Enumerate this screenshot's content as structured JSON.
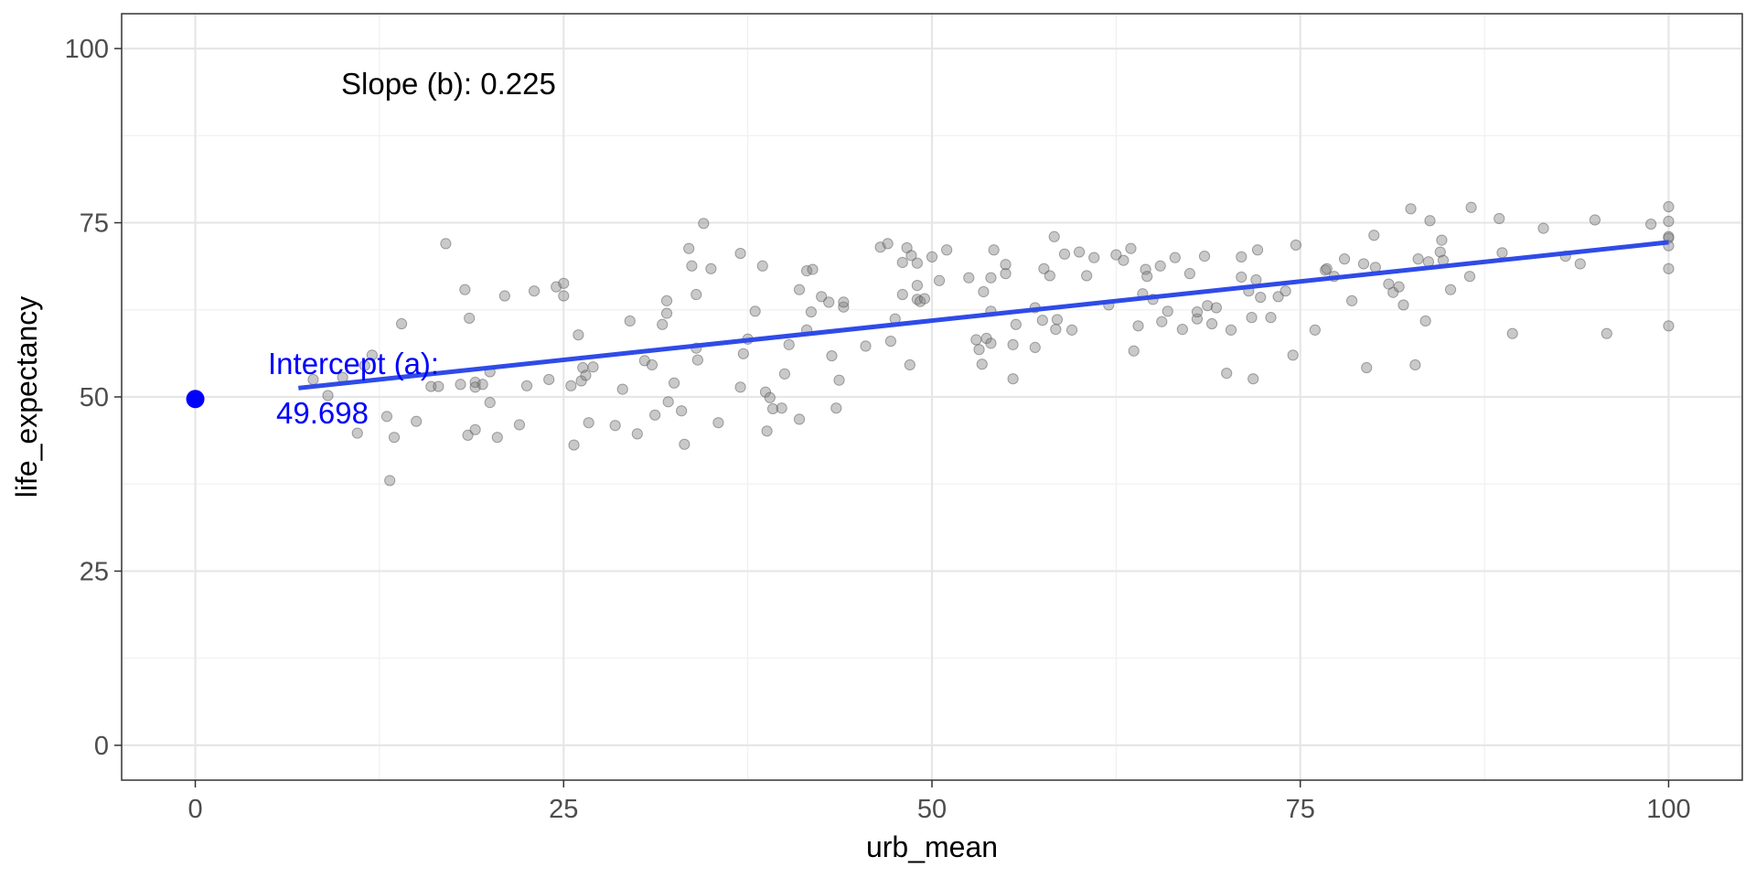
{
  "chart_data": {
    "type": "scatter",
    "xlabel": "urb_mean",
    "ylabel": "life_expectancy",
    "xlim": [
      -5,
      105
    ],
    "ylim": [
      -5,
      105
    ],
    "x_ticks": [
      0,
      25,
      50,
      75,
      100
    ],
    "y_ticks": [
      0,
      25,
      50,
      75,
      100
    ],
    "grid": true,
    "colors": {
      "points": "#7f7f7f",
      "fit_line": "#2f4be8",
      "annotation": "#0000ff",
      "text": "#000000"
    },
    "regression": {
      "slope": 0.225,
      "intercept": 49.698,
      "x_range": [
        7,
        100
      ]
    },
    "intercept_point": {
      "x": 0,
      "y": 49.698
    },
    "annotations": {
      "slope": "Slope (b): 0.225",
      "intercept_line1": "Intercept (a):",
      "intercept_line2": "49.698"
    },
    "points": [
      [
        8,
        52.5
      ],
      [
        9,
        50.2
      ],
      [
        10,
        52.8
      ],
      [
        11,
        44.8
      ],
      [
        11.5,
        54.5
      ],
      [
        12,
        56
      ],
      [
        13,
        47.2
      ],
      [
        13.2,
        38
      ],
      [
        13.5,
        44.2
      ],
      [
        14,
        60.5
      ],
      [
        15,
        46.5
      ],
      [
        16,
        51.5
      ],
      [
        16.5,
        51.5
      ],
      [
        17,
        72
      ],
      [
        18,
        51.8
      ],
      [
        18.3,
        65.4
      ],
      [
        18.5,
        44.5
      ],
      [
        18.6,
        61.3
      ],
      [
        19,
        45.3
      ],
      [
        19,
        52.1
      ],
      [
        19,
        51.4
      ],
      [
        19.5,
        51.8
      ],
      [
        20,
        49.2
      ],
      [
        20,
        53.6
      ],
      [
        20.5,
        44.2
      ],
      [
        21,
        64.5
      ],
      [
        22,
        46
      ],
      [
        22.5,
        51.6
      ],
      [
        23,
        65.2
      ],
      [
        24,
        52.5
      ],
      [
        24.5,
        65.8
      ],
      [
        25,
        64.5
      ],
      [
        25,
        66.3
      ],
      [
        25.5,
        51.6
      ],
      [
        25.7,
        43.1
      ],
      [
        26,
        58.9
      ],
      [
        26.2,
        52.3
      ],
      [
        26.3,
        54.2
      ],
      [
        26.5,
        53.1
      ],
      [
        26.7,
        46.3
      ],
      [
        27,
        54.3
      ],
      [
        28.5,
        45.9
      ],
      [
        29,
        51.1
      ],
      [
        29.5,
        60.9
      ],
      [
        30,
        44.7
      ],
      [
        30.5,
        55.2
      ],
      [
        31,
        54.6
      ],
      [
        31.2,
        47.4
      ],
      [
        31.7,
        60.4
      ],
      [
        32,
        62
      ],
      [
        32,
        63.8
      ],
      [
        32.1,
        49.3
      ],
      [
        32.5,
        52
      ],
      [
        33,
        48
      ],
      [
        33.2,
        43.2
      ],
      [
        33.5,
        71.3
      ],
      [
        33.7,
        68.8
      ],
      [
        34,
        57
      ],
      [
        34,
        64.7
      ],
      [
        34.1,
        55.3
      ],
      [
        34.5,
        74.9
      ],
      [
        35,
        68.4
      ],
      [
        35.5,
        46.3
      ],
      [
        37,
        70.6
      ],
      [
        37,
        51.4
      ],
      [
        37.2,
        56.2
      ],
      [
        37.5,
        58.3
      ],
      [
        38,
        62.3
      ],
      [
        38.5,
        68.8
      ],
      [
        38.7,
        50.7
      ],
      [
        38.8,
        45.1
      ],
      [
        39,
        49.9
      ],
      [
        39.2,
        48.3
      ],
      [
        39.8,
        48.4
      ],
      [
        40,
        53.3
      ],
      [
        40.3,
        57.5
      ],
      [
        41,
        46.8
      ],
      [
        41,
        65.4
      ],
      [
        41.5,
        68.1
      ],
      [
        41.5,
        59.6
      ],
      [
        41.8,
        62.2
      ],
      [
        41.9,
        68.3
      ],
      [
        42.5,
        64.4
      ],
      [
        43,
        63.6
      ],
      [
        43.2,
        55.9
      ],
      [
        43.7,
        52.4
      ],
      [
        43.5,
        48.4
      ],
      [
        44,
        62.9
      ],
      [
        44,
        63.6
      ],
      [
        45.5,
        57.3
      ],
      [
        46.5,
        71.5
      ],
      [
        47,
        72
      ],
      [
        47.2,
        58
      ],
      [
        47.5,
        61.2
      ],
      [
        48,
        64.7
      ],
      [
        48,
        69.3
      ],
      [
        48.3,
        71.4
      ],
      [
        48.5,
        54.6
      ],
      [
        48.6,
        70.3
      ],
      [
        49,
        64
      ],
      [
        49,
        66
      ],
      [
        49,
        69.2
      ],
      [
        49.2,
        63.7
      ],
      [
        49.5,
        64.1
      ],
      [
        50,
        70.1
      ],
      [
        50.5,
        66.7
      ],
      [
        51,
        71.1
      ],
      [
        52.5,
        67.1
      ],
      [
        53,
        58.2
      ],
      [
        53.2,
        56.8
      ],
      [
        53.4,
        54.7
      ],
      [
        53.5,
        65.1
      ],
      [
        53.7,
        58.4
      ],
      [
        54,
        67.1
      ],
      [
        54,
        62.3
      ],
      [
        54,
        57.7
      ],
      [
        54.2,
        71.1
      ],
      [
        55,
        67.7
      ],
      [
        55,
        69
      ],
      [
        55.5,
        57.5
      ],
      [
        55.5,
        52.6
      ],
      [
        55.7,
        60.4
      ],
      [
        57,
        62.8
      ],
      [
        57,
        57.1
      ],
      [
        57.5,
        61
      ],
      [
        57.6,
        68.4
      ],
      [
        58,
        67.4
      ],
      [
        58.3,
        73
      ],
      [
        58.4,
        59.7
      ],
      [
        58.5,
        61.1
      ],
      [
        59,
        70.5
      ],
      [
        59.5,
        59.6
      ],
      [
        60,
        70.8
      ],
      [
        60.5,
        67.4
      ],
      [
        61,
        70
      ],
      [
        62,
        63.2
      ],
      [
        62.5,
        70.4
      ],
      [
        63,
        69.6
      ],
      [
        63.5,
        71.3
      ],
      [
        63.7,
        56.6
      ],
      [
        64,
        60.2
      ],
      [
        64.3,
        64.8
      ],
      [
        64.5,
        68.3
      ],
      [
        64.6,
        67.3
      ],
      [
        65,
        64
      ],
      [
        65.5,
        68.8
      ],
      [
        65.6,
        60.8
      ],
      [
        66,
        62.3
      ],
      [
        66.5,
        70
      ],
      [
        67,
        59.7
      ],
      [
        67.5,
        67.7
      ],
      [
        68,
        61.2
      ],
      [
        68,
        62.2
      ],
      [
        68.5,
        70.2
      ],
      [
        68.7,
        63.1
      ],
      [
        69,
        60.5
      ],
      [
        69.3,
        62.8
      ],
      [
        70,
        53.4
      ],
      [
        70.3,
        59.6
      ],
      [
        71,
        70.1
      ],
      [
        71,
        67.2
      ],
      [
        71.5,
        65.2
      ],
      [
        71.7,
        61.4
      ],
      [
        71.8,
        52.6
      ],
      [
        72,
        66.8
      ],
      [
        72.1,
        71.1
      ],
      [
        72.3,
        64.3
      ],
      [
        73,
        61.4
      ],
      [
        73.5,
        64.4
      ],
      [
        74,
        65.2
      ],
      [
        74.5,
        56
      ],
      [
        74.7,
        71.8
      ],
      [
        76,
        59.6
      ],
      [
        76.7,
        68.2
      ],
      [
        76.8,
        68.4
      ],
      [
        77.3,
        67.3
      ],
      [
        78,
        69.8
      ],
      [
        78.5,
        63.8
      ],
      [
        79.3,
        69.1
      ],
      [
        79.5,
        54.2
      ],
      [
        80,
        73.2
      ],
      [
        80.1,
        68.6
      ],
      [
        81,
        66.2
      ],
      [
        81.3,
        65
      ],
      [
        81.7,
        65.8
      ],
      [
        82,
        63.2
      ],
      [
        82.5,
        77
      ],
      [
        82.8,
        54.6
      ],
      [
        83,
        69.8
      ],
      [
        83.5,
        60.9
      ],
      [
        83.7,
        69.4
      ],
      [
        83.8,
        75.3
      ],
      [
        84.5,
        70.8
      ],
      [
        84.6,
        72.5
      ],
      [
        84.7,
        69.6
      ],
      [
        85.2,
        65.4
      ],
      [
        86.5,
        67.3
      ],
      [
        86.6,
        77.2
      ],
      [
        88.5,
        75.6
      ],
      [
        88.7,
        70.7
      ],
      [
        89.4,
        59.1
      ],
      [
        91.5,
        74.2
      ],
      [
        93,
        70.2
      ],
      [
        94,
        69.1
      ],
      [
        95,
        75.4
      ],
      [
        95.8,
        59.1
      ],
      [
        98.8,
        74.8
      ],
      [
        100,
        77.3
      ],
      [
        100,
        75.2
      ],
      [
        100,
        73
      ],
      [
        100,
        72.8
      ],
      [
        100,
        71.7
      ],
      [
        100,
        68.4
      ],
      [
        100,
        60.2
      ]
    ]
  }
}
